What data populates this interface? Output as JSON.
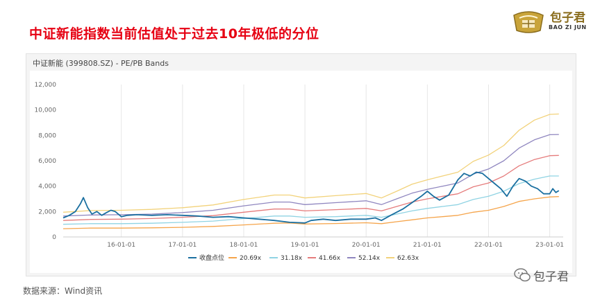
{
  "slide": {
    "title": "中证新能指数当前估值处于过去10年极低的分位",
    "source": "数据来源：Wind资讯"
  },
  "logo": {
    "cn": "包子君",
    "en": "BAO ZI JUN"
  },
  "watermark": {
    "text": "包子君"
  },
  "colors": {
    "close": "#1a6fa0",
    "b1": "#f5a44a",
    "b2": "#8fd3e3",
    "b3": "#e57b7b",
    "b4": "#8f86bf",
    "b5": "#f2d27a",
    "title": "#e60012"
  },
  "chart_data": {
    "type": "line",
    "title": "中证新能 (399808.SZ) - PE/PB Bands",
    "ylim": [
      0,
      12000
    ],
    "yticks": [
      "0",
      "2,000",
      "4,000",
      "6,000",
      "8,000",
      "10,000",
      "12,000"
    ],
    "xticks": [
      {
        "label": "16-01-01",
        "t": 2016.0
      },
      {
        "label": "17-01-01",
        "t": 2017.0
      },
      {
        "label": "18-01-01",
        "t": 2018.0
      },
      {
        "label": "19-01-01",
        "t": 2019.0
      },
      {
        "label": "20-01-01",
        "t": 2020.0
      },
      {
        "label": "21-01-01",
        "t": 2021.0
      },
      {
        "label": "22-01-01",
        "t": 2022.0
      },
      {
        "label": "23-01-01",
        "t": 2023.0
      }
    ],
    "xrange": [
      2015.05,
      2023.22
    ],
    "legend_position": "bottom",
    "grid": "vertical",
    "series": [
      {
        "name": "收盘点位",
        "key": "close",
        "points": [
          [
            2015.05,
            1500
          ],
          [
            2015.15,
            1700
          ],
          [
            2015.25,
            2000
          ],
          [
            2015.33,
            2600
          ],
          [
            2015.38,
            3100
          ],
          [
            2015.45,
            2300
          ],
          [
            2015.52,
            1800
          ],
          [
            2015.6,
            2000
          ],
          [
            2015.68,
            1700
          ],
          [
            2015.75,
            1900
          ],
          [
            2015.83,
            2100
          ],
          [
            2015.9,
            2000
          ],
          [
            2016.0,
            1600
          ],
          [
            2016.1,
            1700
          ],
          [
            2016.25,
            1750
          ],
          [
            2016.5,
            1700
          ],
          [
            2016.75,
            1750
          ],
          [
            2017.0,
            1700
          ],
          [
            2017.25,
            1650
          ],
          [
            2017.5,
            1550
          ],
          [
            2017.75,
            1600
          ],
          [
            2018.0,
            1500
          ],
          [
            2018.25,
            1400
          ],
          [
            2018.5,
            1300
          ],
          [
            2018.75,
            1150
          ],
          [
            2019.0,
            1100
          ],
          [
            2019.1,
            1300
          ],
          [
            2019.3,
            1400
          ],
          [
            2019.5,
            1300
          ],
          [
            2019.75,
            1400
          ],
          [
            2020.0,
            1400
          ],
          [
            2020.15,
            1500
          ],
          [
            2020.25,
            1300
          ],
          [
            2020.4,
            1700
          ],
          [
            2020.6,
            2200
          ],
          [
            2020.75,
            2700
          ],
          [
            2020.9,
            3200
          ],
          [
            2021.0,
            3600
          ],
          [
            2021.1,
            3200
          ],
          [
            2021.2,
            2900
          ],
          [
            2021.35,
            3300
          ],
          [
            2021.5,
            4500
          ],
          [
            2021.6,
            5000
          ],
          [
            2021.7,
            4800
          ],
          [
            2021.8,
            5100
          ],
          [
            2021.9,
            5000
          ],
          [
            2022.0,
            4600
          ],
          [
            2022.1,
            4200
          ],
          [
            2022.2,
            3800
          ],
          [
            2022.3,
            3200
          ],
          [
            2022.4,
            4000
          ],
          [
            2022.5,
            4600
          ],
          [
            2022.6,
            4400
          ],
          [
            2022.7,
            4000
          ],
          [
            2022.8,
            3800
          ],
          [
            2022.9,
            3400
          ],
          [
            2023.0,
            3400
          ],
          [
            2023.05,
            3800
          ],
          [
            2023.1,
            3500
          ],
          [
            2023.15,
            3650
          ]
        ]
      },
      {
        "name": "20.69x",
        "key": "b1",
        "points": [
          [
            2015.05,
            650
          ],
          [
            2015.5,
            700
          ],
          [
            2016.0,
            700
          ],
          [
            2016.5,
            720
          ],
          [
            2017.0,
            760
          ],
          [
            2017.5,
            830
          ],
          [
            2018.0,
            950
          ],
          [
            2018.5,
            1080
          ],
          [
            2018.75,
            1100
          ],
          [
            2019.0,
            1020
          ],
          [
            2019.5,
            1060
          ],
          [
            2020.0,
            1120
          ],
          [
            2020.25,
            1050
          ],
          [
            2020.5,
            1200
          ],
          [
            2020.75,
            1350
          ],
          [
            2021.0,
            1500
          ],
          [
            2021.25,
            1600
          ],
          [
            2021.5,
            1700
          ],
          [
            2021.75,
            1950
          ],
          [
            2022.0,
            2100
          ],
          [
            2022.25,
            2400
          ],
          [
            2022.5,
            2800
          ],
          [
            2022.75,
            3000
          ],
          [
            2023.0,
            3150
          ],
          [
            2023.15,
            3180
          ]
        ]
      },
      {
        "name": "31.18x",
        "key": "b2",
        "points": [
          [
            2015.05,
            1000
          ],
          [
            2015.5,
            1050
          ],
          [
            2016.0,
            1050
          ],
          [
            2016.5,
            1080
          ],
          [
            2017.0,
            1150
          ],
          [
            2017.5,
            1250
          ],
          [
            2018.0,
            1450
          ],
          [
            2018.5,
            1650
          ],
          [
            2018.75,
            1650
          ],
          [
            2019.0,
            1550
          ],
          [
            2019.5,
            1600
          ],
          [
            2020.0,
            1700
          ],
          [
            2020.25,
            1550
          ],
          [
            2020.5,
            1800
          ],
          [
            2020.75,
            2050
          ],
          [
            2021.0,
            2250
          ],
          [
            2021.25,
            2400
          ],
          [
            2021.5,
            2550
          ],
          [
            2021.75,
            2950
          ],
          [
            2022.0,
            3200
          ],
          [
            2022.25,
            3600
          ],
          [
            2022.5,
            4200
          ],
          [
            2022.75,
            4550
          ],
          [
            2023.0,
            4800
          ],
          [
            2023.15,
            4800
          ]
        ]
      },
      {
        "name": "41.66x",
        "key": "b3",
        "points": [
          [
            2015.05,
            1300
          ],
          [
            2015.5,
            1380
          ],
          [
            2016.0,
            1400
          ],
          [
            2016.5,
            1450
          ],
          [
            2017.0,
            1550
          ],
          [
            2017.5,
            1680
          ],
          [
            2018.0,
            1950
          ],
          [
            2018.5,
            2200
          ],
          [
            2018.75,
            2200
          ],
          [
            2019.0,
            2050
          ],
          [
            2019.5,
            2150
          ],
          [
            2020.0,
            2250
          ],
          [
            2020.25,
            2050
          ],
          [
            2020.5,
            2400
          ],
          [
            2020.75,
            2750
          ],
          [
            2021.0,
            3000
          ],
          [
            2021.25,
            3200
          ],
          [
            2021.5,
            3400
          ],
          [
            2021.75,
            3950
          ],
          [
            2022.0,
            4250
          ],
          [
            2022.25,
            4800
          ],
          [
            2022.5,
            5600
          ],
          [
            2022.75,
            6100
          ],
          [
            2023.0,
            6400
          ],
          [
            2023.15,
            6420
          ]
        ]
      },
      {
        "name": "52.14x",
        "key": "b4",
        "points": [
          [
            2015.05,
            1650
          ],
          [
            2015.5,
            1730
          ],
          [
            2016.0,
            1750
          ],
          [
            2016.5,
            1800
          ],
          [
            2017.0,
            1920
          ],
          [
            2017.5,
            2100
          ],
          [
            2018.0,
            2450
          ],
          [
            2018.5,
            2750
          ],
          [
            2018.75,
            2750
          ],
          [
            2019.0,
            2550
          ],
          [
            2019.5,
            2700
          ],
          [
            2020.0,
            2850
          ],
          [
            2020.25,
            2550
          ],
          [
            2020.5,
            3000
          ],
          [
            2020.75,
            3450
          ],
          [
            2021.0,
            3750
          ],
          [
            2021.25,
            4000
          ],
          [
            2021.5,
            4250
          ],
          [
            2021.75,
            4950
          ],
          [
            2022.0,
            5350
          ],
          [
            2022.25,
            6000
          ],
          [
            2022.5,
            7000
          ],
          [
            2022.75,
            7650
          ],
          [
            2023.0,
            8050
          ],
          [
            2023.15,
            8070
          ]
        ]
      },
      {
        "name": "62.63x",
        "key": "b5",
        "points": [
          [
            2015.05,
            1950
          ],
          [
            2015.5,
            2080
          ],
          [
            2016.0,
            2100
          ],
          [
            2016.5,
            2170
          ],
          [
            2017.0,
            2300
          ],
          [
            2017.5,
            2520
          ],
          [
            2018.0,
            2950
          ],
          [
            2018.5,
            3300
          ],
          [
            2018.75,
            3300
          ],
          [
            2019.0,
            3070
          ],
          [
            2019.5,
            3250
          ],
          [
            2020.0,
            3420
          ],
          [
            2020.25,
            3070
          ],
          [
            2020.5,
            3600
          ],
          [
            2020.75,
            4150
          ],
          [
            2021.0,
            4500
          ],
          [
            2021.25,
            4800
          ],
          [
            2021.5,
            5100
          ],
          [
            2021.75,
            5950
          ],
          [
            2022.0,
            6450
          ],
          [
            2022.25,
            7200
          ],
          [
            2022.5,
            8400
          ],
          [
            2022.75,
            9200
          ],
          [
            2023.0,
            9650
          ],
          [
            2023.15,
            9680
          ]
        ]
      }
    ]
  }
}
